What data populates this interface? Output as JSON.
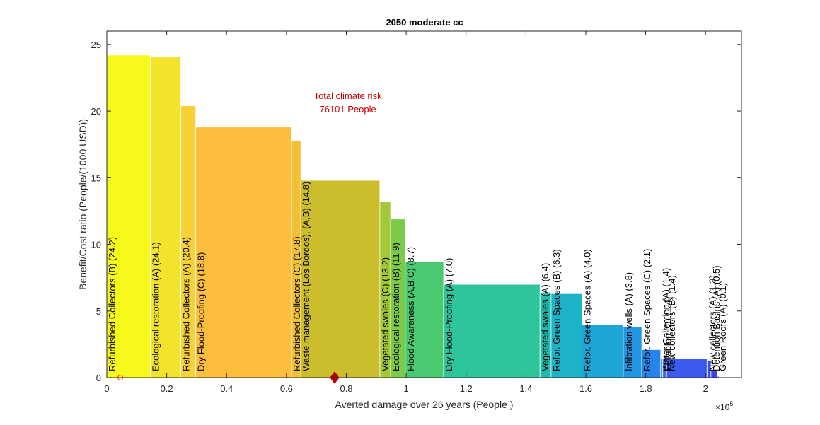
{
  "chart_data": {
    "type": "bar",
    "title": "2050 moderate cc",
    "xlabel": "Averted damage over 26 years (People )",
    "ylabel": "Benefit/Cost ratio (People/(1000 USD))",
    "x_multiplier_label": "×10",
    "x_multiplier_exponent": "5",
    "xlim": [
      0,
      2.12
    ],
    "ylim": [
      0,
      26
    ],
    "x_ticks": [
      {
        "value": 0,
        "label": "0"
      },
      {
        "value": 0.2,
        "label": "0.2"
      },
      {
        "value": 0.4,
        "label": "0.4"
      },
      {
        "value": 0.6,
        "label": "0.6"
      },
      {
        "value": 0.8,
        "label": "0.8"
      },
      {
        "value": 1,
        "label": "1"
      },
      {
        "value": 1.2,
        "label": "1.2"
      },
      {
        "value": 1.4,
        "label": "1.4"
      },
      {
        "value": 1.6,
        "label": "1.6"
      },
      {
        "value": 1.8,
        "label": "1.8"
      },
      {
        "value": 2,
        "label": "2"
      }
    ],
    "y_ticks": [
      {
        "value": 0,
        "label": "0"
      },
      {
        "value": 5,
        "label": "5"
      },
      {
        "value": 10,
        "label": "10"
      },
      {
        "value": 15,
        "label": "15"
      },
      {
        "value": 20,
        "label": "20"
      },
      {
        "value": 25,
        "label": "25"
      }
    ],
    "grid": false,
    "annotation": {
      "line1": "Total climate risk",
      "line2": "76101 People",
      "color": "#cc0000",
      "x": 0.805,
      "y": 20.8
    },
    "marker_total_risk": {
      "x": 0.761,
      "y": 0,
      "color": "#cc0000"
    },
    "marker_origin_circle": {
      "x": 0.045,
      "y": 0,
      "color": "#ff3333"
    },
    "bars": [
      {
        "label": "Refurbished Collectors (B)  (24.2)",
        "x0": 0.0,
        "x1": 0.145,
        "value": 24.2,
        "color": "#f6f919"
      },
      {
        "label": "Ecological restoration (A)  (24.1)",
        "x0": 0.145,
        "x1": 0.247,
        "value": 24.1,
        "color": "#f2e42b"
      },
      {
        "label": "Refurbished Collectors (A)  (20.4)",
        "x0": 0.247,
        "x1": 0.297,
        "value": 20.4,
        "color": "#f7d135"
      },
      {
        "label": "Dry Flood-Proofing (C)  (18.8)",
        "x0": 0.297,
        "x1": 0.617,
        "value": 18.8,
        "color": "#fcbe3c"
      },
      {
        "label": "Refurbished Collectors (C)  (17.8)",
        "x0": 0.617,
        "x1": 0.648,
        "value": 17.8,
        "color": "#f2c037"
      },
      {
        "label": "Waste management (Los Bordos), (A,B)  (14.8)",
        "x0": 0.648,
        "x1": 0.912,
        "value": 14.8,
        "color": "#cbbd2b"
      },
      {
        "label": "Vegetated swales (C)  (13.2)",
        "x0": 0.912,
        "x1": 0.948,
        "value": 13.2,
        "color": "#a5c839"
      },
      {
        "label": "Ecological restoration (B)  (11.9)",
        "x0": 0.948,
        "x1": 0.997,
        "value": 11.9,
        "color": "#7bcb49"
      },
      {
        "label": "Flood Awareness (A,B,C)  (8.7)",
        "x0": 0.997,
        "x1": 1.125,
        "value": 8.7,
        "color": "#48c972"
      },
      {
        "label": "Dry Flood-Proofing (A)  (7.0)",
        "x0": 1.125,
        "x1": 1.447,
        "value": 7.0,
        "color": "#2ec59a"
      },
      {
        "label": "Vegetated swales (A)  (6.4)",
        "x0": 1.447,
        "x1": 1.484,
        "value": 6.4,
        "color": "#21bbae"
      },
      {
        "label": "Refor. Green Spaces (B)  (6.3)",
        "x0": 1.484,
        "x1": 1.587,
        "value": 6.3,
        "color": "#1cb2c8"
      },
      {
        "label": "Refor. Green Spaces (A)  (4.0)",
        "x0": 1.587,
        "x1": 1.725,
        "value": 4.0,
        "color": "#1ea6d9"
      },
      {
        "label": "Infiltration wells (A)  (3.8)",
        "x0": 1.725,
        "x1": 1.787,
        "value": 3.8,
        "color": "#2196e3"
      },
      {
        "label": "Refor. Green Spaces (C)  (2.1)",
        "x0": 1.787,
        "x1": 1.85,
        "value": 2.1,
        "color": "#2684ea"
      },
      {
        "label": "Water Collection (A)  (1.4)",
        "x0": 1.85,
        "x1": 1.857,
        "value": 1.4,
        "color": "#2f75ef"
      },
      {
        "label": "El Tablon (C)  (1.4)",
        "x0": 1.857,
        "x1": 1.87,
        "value": 1.4,
        "color": "#3669ef"
      },
      {
        "label": "New collectors (B)  (1.4)",
        "x0": 1.87,
        "x1": 2.005,
        "value": 1.4,
        "color": "#3a5bee"
      },
      {
        "label": "New collectors (A)  (1.3)",
        "x0": 2.005,
        "x1": 2.018,
        "value": 1.3,
        "color": "#3b4fe8"
      },
      {
        "label": "Detention Basins (A)  (0.5)",
        "x0": 2.018,
        "x1": 2.04,
        "value": 0.5,
        "color": "#4140e0"
      },
      {
        "label": "Green Roofs (A)  (0.1)",
        "x0": 2.04,
        "x1": 2.045,
        "value": 0.1,
        "color": "#4b30d8"
      }
    ]
  }
}
